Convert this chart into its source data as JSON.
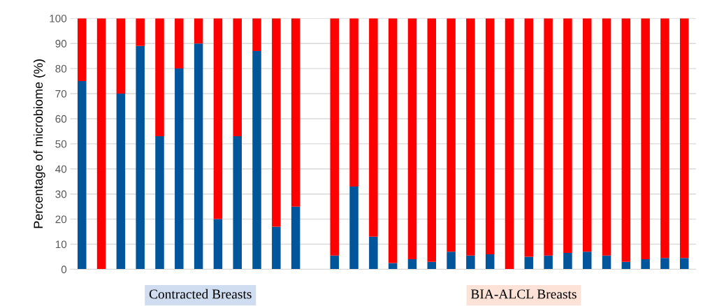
{
  "chart_data": {
    "type": "bar",
    "stacked": true,
    "ylabel": "Percentage of microbiome (%)",
    "categories": [
      null,
      null,
      null,
      null,
      null,
      null,
      null,
      null,
      null,
      null,
      null,
      null,
      null,
      null,
      null,
      null,
      null,
      null,
      null,
      null,
      null,
      null,
      null,
      null,
      null,
      null,
      null,
      null,
      null,
      null,
      null,
      null
    ],
    "series": [
      {
        "color": "#00559b",
        "values": [
          75,
          0,
          70,
          89,
          53,
          80,
          90,
          20,
          53,
          87,
          17,
          25,
          null,
          5.5,
          33,
          13,
          2.5,
          4,
          3,
          7,
          5.5,
          6,
          0,
          5,
          5.5,
          6.5,
          7,
          5.5,
          3,
          4,
          4.5,
          4.5
        ]
      },
      {
        "color": "#ff0000",
        "values": [
          25,
          100,
          30,
          11,
          47,
          20,
          10,
          80,
          47,
          13,
          83,
          75,
          null,
          94.5,
          67,
          87,
          97.5,
          96,
          97,
          93,
          94.5,
          94,
          100,
          95,
          94.5,
          93.5,
          93,
          94.5,
          97,
          96,
          95.5,
          95.5
        ]
      }
    ],
    "ylim": [
      0,
      100
    ],
    "yticks": [
      0,
      10,
      20,
      30,
      40,
      50,
      60,
      70,
      80,
      90,
      100
    ],
    "grid": "y",
    "annotations": [
      "Contracted Breasts",
      "BIA-ALCL Breasts"
    ]
  }
}
